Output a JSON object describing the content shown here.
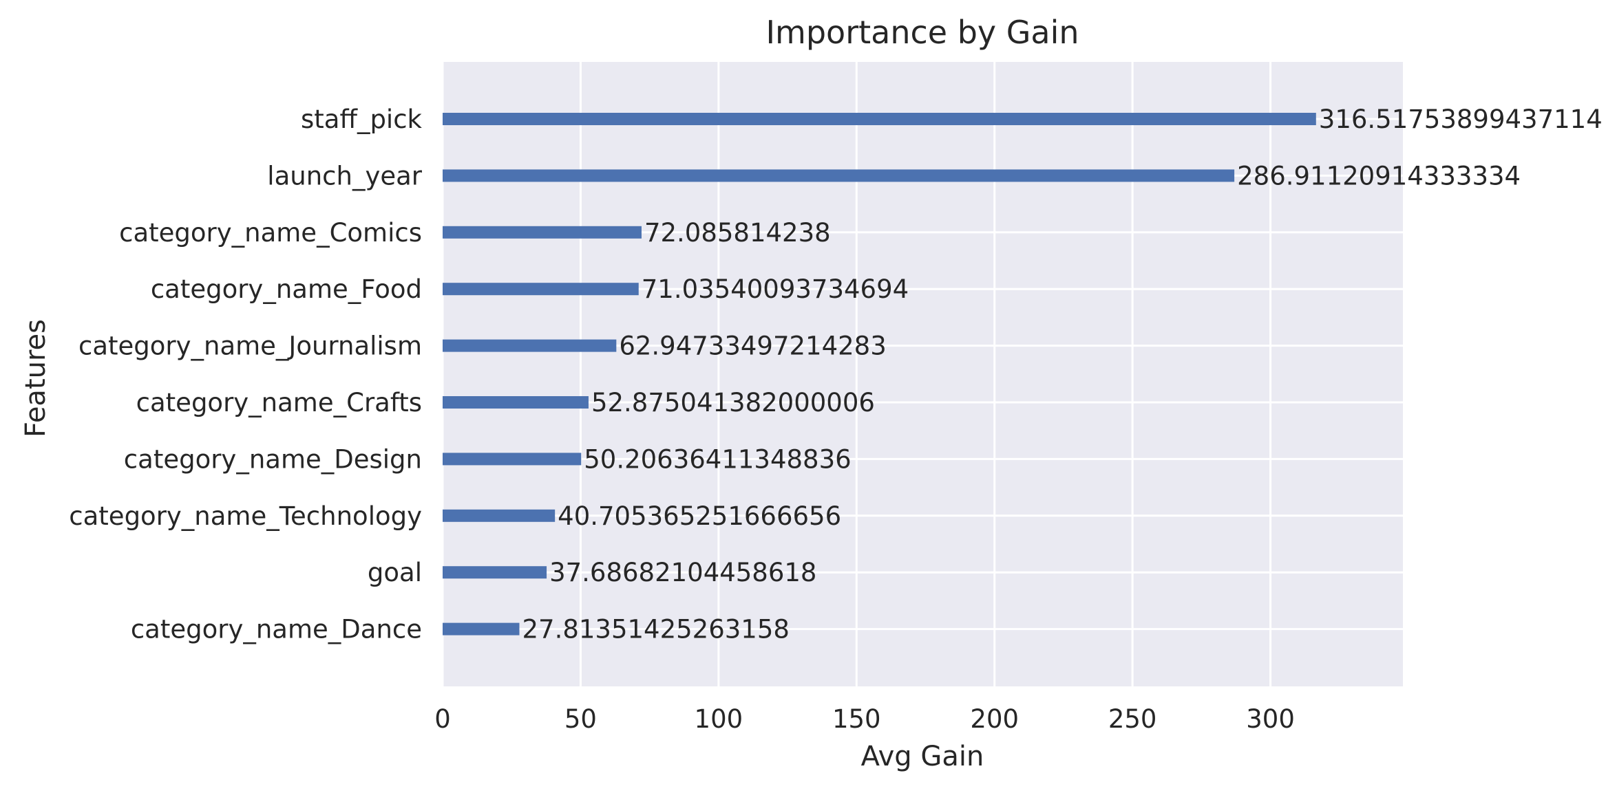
{
  "chart_data": {
    "type": "bar",
    "orientation": "horizontal",
    "title": "Importance by Gain",
    "xlabel": "Avg Gain",
    "ylabel": "Features",
    "xlim": [
      0,
      348
    ],
    "xticks": [
      0,
      50,
      100,
      150,
      200,
      250,
      300
    ],
    "grid": true,
    "bar_color": "#4c72b0",
    "background_color": "#eaeaf2",
    "categories": [
      "staff_pick",
      "launch_year",
      "category_name_Comics",
      "category_name_Food",
      "category_name_Journalism",
      "category_name_Crafts",
      "category_name_Design",
      "category_name_Technology",
      "goal",
      "category_name_Dance"
    ],
    "values": [
      316.51753899437114,
      286.91120914333334,
      72.085814238,
      71.03540093734694,
      62.94733497214283,
      52.875041382000006,
      50.20636411348836,
      40.705365251666656,
      37.68682104458618,
      27.81351425263158
    ],
    "value_labels": [
      "316.51753899437114",
      "286.91120914333334",
      "72.085814238",
      "71.03540093734694",
      "62.94733497214283",
      "52.875041382000006",
      "50.20636411348836",
      "40.705365251666656",
      "37.68682104458618",
      "27.81351425263158"
    ]
  }
}
